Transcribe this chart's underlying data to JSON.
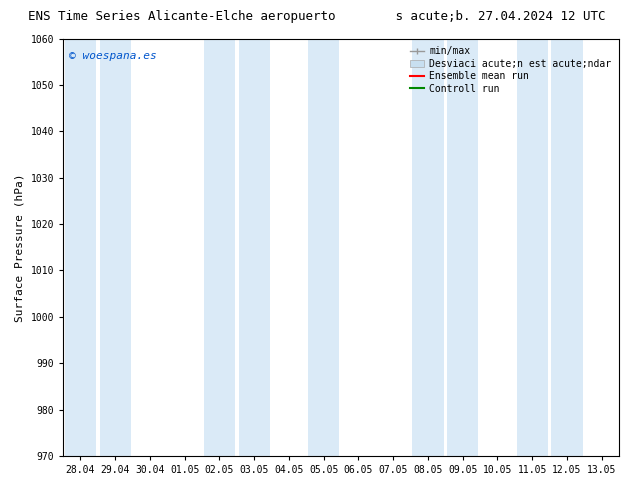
{
  "title_left": "ENS Time Series Alicante-Elche aeropuerto",
  "title_right": "s acute;b. 27.04.2024 12 UTC",
  "ylabel": "Surface Pressure (hPa)",
  "watermark": "© woespana.es",
  "watermark_color": "#0055cc",
  "ylim": [
    970,
    1060
  ],
  "yticks": [
    970,
    980,
    990,
    1000,
    1010,
    1020,
    1030,
    1040,
    1050,
    1060
  ],
  "xtick_labels": [
    "28.04",
    "29.04",
    "30.04",
    "01.05",
    "02.05",
    "03.05",
    "04.05",
    "05.05",
    "06.05",
    "07.05",
    "08.05",
    "09.05",
    "10.05",
    "11.05",
    "12.05",
    "13.05"
  ],
  "background_color": "#ffffff",
  "plot_bg_color": "#ffffff",
  "shaded_band_color": "#daeaf7",
  "shaded_columns": [
    0,
    1,
    4,
    5,
    7,
    10,
    11,
    13,
    14
  ],
  "legend_items": [
    {
      "label": "min/max",
      "color": "#999999",
      "type": "errorbar"
    },
    {
      "label": "Desviaci acute;n est acute;ndar",
      "color": "#c8dff0",
      "type": "patch"
    },
    {
      "label": "Ensemble mean run",
      "color": "#ff0000",
      "type": "line"
    },
    {
      "label": "Controll run",
      "color": "#008800",
      "type": "line"
    }
  ],
  "fig_width": 6.34,
  "fig_height": 4.9,
  "dpi": 100
}
